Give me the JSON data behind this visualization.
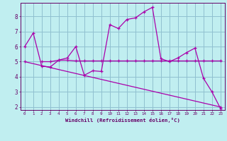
{
  "xlabel": "Windchill (Refroidissement éolien,°C)",
  "bg_color": "#c0eef0",
  "grid_color": "#90c0d0",
  "line_color": "#aa00aa",
  "spine_color": "#660066",
  "xlim": [
    -0.5,
    23.5
  ],
  "ylim": [
    1.8,
    8.9
  ],
  "yticks": [
    2,
    3,
    4,
    5,
    6,
    7,
    8
  ],
  "xticks": [
    0,
    1,
    2,
    3,
    4,
    5,
    6,
    7,
    8,
    9,
    10,
    11,
    12,
    13,
    14,
    15,
    16,
    17,
    18,
    19,
    20,
    21,
    22,
    23
  ],
  "line1_x": [
    0,
    1,
    2,
    3,
    4,
    5,
    6,
    7,
    8,
    9,
    10,
    11,
    12,
    13,
    14,
    15,
    16,
    17,
    18,
    19,
    20,
    21,
    22,
    23
  ],
  "line1_y": [
    6.0,
    6.9,
    4.7,
    4.65,
    5.1,
    5.25,
    6.0,
    4.1,
    4.4,
    4.35,
    7.45,
    7.2,
    7.8,
    7.9,
    8.3,
    8.6,
    5.2,
    5.0,
    5.25,
    5.6,
    5.9,
    3.9,
    3.0,
    1.9
  ],
  "line2_x": [
    2,
    3,
    4,
    5,
    6,
    7,
    8,
    9,
    10,
    11,
    12,
    13,
    14,
    15,
    16,
    17,
    18,
    19,
    20,
    21,
    22,
    23
  ],
  "line2_y": [
    5.0,
    5.0,
    5.1,
    5.1,
    5.05,
    5.05,
    5.05,
    5.05,
    5.05,
    5.05,
    5.05,
    5.05,
    5.05,
    5.05,
    5.05,
    5.05,
    5.05,
    5.05,
    5.05,
    5.05,
    5.05,
    5.05
  ],
  "line3_x": [
    0,
    23
  ],
  "line3_y": [
    5.0,
    2.0
  ]
}
